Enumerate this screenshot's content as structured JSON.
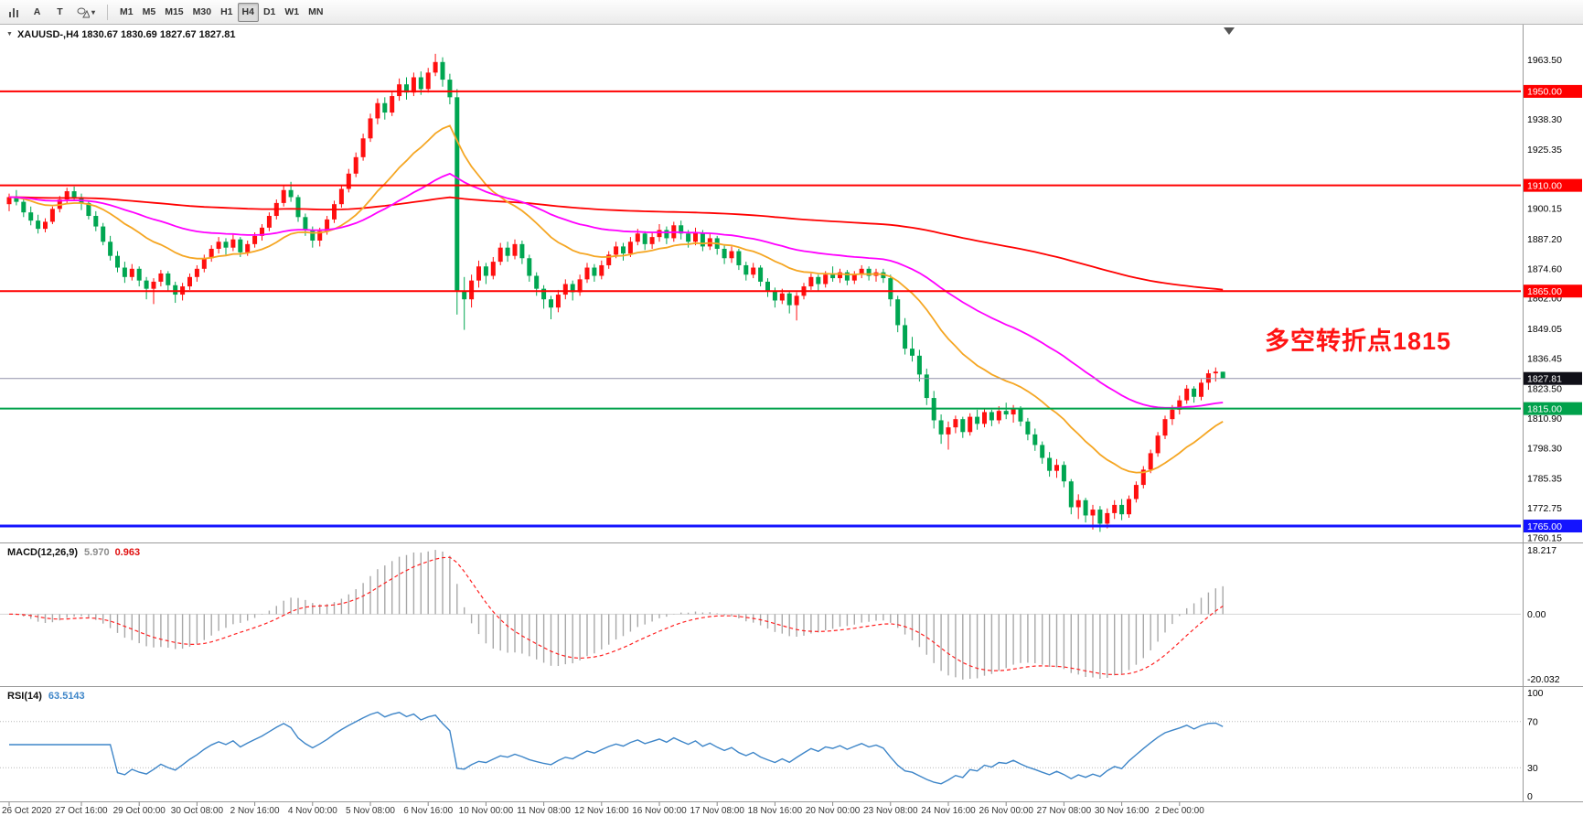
{
  "icons": {
    "caret": "▾",
    "title_arrow": "▼"
  },
  "toolbar": {
    "tools": {
      "text_label": "A",
      "text": "T"
    },
    "timeframes": [
      "M1",
      "M5",
      "M15",
      "M30",
      "H1",
      "H4",
      "D1",
      "W1",
      "MN"
    ],
    "active_timeframe": "H4"
  },
  "chart_data": [
    {
      "type": "candlestick",
      "title": "XAUUSD-,H4 1830.67 1830.69 1827.67 1827.81",
      "symbol": "XAUUSD-",
      "timeframe": "H4",
      "bull_color": "#ff0f0f",
      "bear_color": "#00a651",
      "price_axis": {
        "min": 1758,
        "max": 1978,
        "ticks": [
          "1963.50",
          "1938.30",
          "1925.35",
          "1900.15",
          "1887.20",
          "1874.60",
          "1862.00",
          "1849.05",
          "1836.45",
          "1823.50",
          "1810.90",
          "1798.30",
          "1785.35",
          "1772.75",
          "1760.15"
        ]
      },
      "x_axis": {
        "label_indices": [
          0,
          10,
          18,
          26,
          34,
          42,
          50,
          58,
          66,
          74,
          82,
          90,
          98,
          106,
          114,
          122,
          130,
          138,
          146,
          154,
          162
        ],
        "labels": [
          "26 Oct 2020",
          "27 Oct 16:00",
          "29 Oct 00:00",
          "30 Oct 08:00",
          "2 Nov 16:00",
          "4 Nov 00:00",
          "5 Nov 08:00",
          "6 Nov 16:00",
          "10 Nov 00:00",
          "11 Nov 08:00",
          "12 Nov 16:00",
          "16 Nov 00:00",
          "17 Nov 08:00",
          "18 Nov 16:00",
          "20 Nov 00:00",
          "23 Nov 08:00",
          "24 Nov 16:00",
          "26 Nov 00:00",
          "27 Nov 08:00",
          "30 Nov 16:00",
          "2 Dec 00:00"
        ]
      },
      "moving_averages": [
        {
          "period": 250,
          "color": "#ff0000"
        },
        {
          "period": 21,
          "color": "#f5a623"
        },
        {
          "period": 55,
          "color": "#ff00ff"
        }
      ],
      "hlines": [
        {
          "price": 1950,
          "label": "1950.00",
          "color": "#ff0000",
          "width": 2
        },
        {
          "price": 1910,
          "label": "1910.00",
          "color": "#ff0000",
          "width": 2
        },
        {
          "price": 1865,
          "label": "1865.00",
          "color": "#ff0000",
          "width": 2
        },
        {
          "price": 1815,
          "label": "1815.00",
          "color": "#00a14b",
          "width": 2
        },
        {
          "price": 1765,
          "label": "1765.00",
          "color": "#1414ff",
          "width": 3
        }
      ],
      "current_price": {
        "value": 1827.81,
        "label": "1827.81",
        "line_color": "#9090a8",
        "badge_bg": "#101018"
      },
      "annotation": {
        "text": "多空转折点1815",
        "color": "#ff1414"
      },
      "candles": [
        [
          1902,
          1906.5,
          1899,
          1905
        ],
        [
          1905,
          1908,
          1901.5,
          1903
        ],
        [
          1903,
          1904.5,
          1896.5,
          1898.5
        ],
        [
          1898.5,
          1901,
          1893,
          1895
        ],
        [
          1895,
          1897.5,
          1889.5,
          1891.5
        ],
        [
          1891.5,
          1896,
          1890,
          1894.5
        ],
        [
          1894.5,
          1901,
          1893.5,
          1900
        ],
        [
          1900,
          1905.5,
          1898.5,
          1904
        ],
        [
          1904,
          1909,
          1902,
          1907.5
        ],
        [
          1907.5,
          1909.5,
          1903.5,
          1905
        ],
        [
          1905,
          1906.5,
          1899.5,
          1902.5
        ],
        [
          1902.5,
          1903.5,
          1895.5,
          1897
        ],
        [
          1897,
          1899,
          1890.5,
          1892.5
        ],
        [
          1892.5,
          1894,
          1884.5,
          1886
        ],
        [
          1886,
          1888.5,
          1878,
          1880
        ],
        [
          1880,
          1882,
          1873,
          1875
        ],
        [
          1875,
          1877.5,
          1868.5,
          1871
        ],
        [
          1871,
          1876.5,
          1869.5,
          1874.5
        ],
        [
          1874.5,
          1875.5,
          1867,
          1869.5
        ],
        [
          1869.5,
          1871,
          1861.5,
          1866
        ],
        [
          1866,
          1870.5,
          1859.5,
          1869
        ],
        [
          1869,
          1874,
          1867,
          1872.5
        ],
        [
          1872.5,
          1873.5,
          1865,
          1867.5
        ],
        [
          1867.5,
          1869,
          1860,
          1863.5
        ],
        [
          1863.5,
          1868.5,
          1861,
          1867
        ],
        [
          1867,
          1872.5,
          1865.5,
          1871
        ],
        [
          1871,
          1876,
          1869,
          1874.5
        ],
        [
          1874.5,
          1880.5,
          1873,
          1879
        ],
        [
          1879,
          1884.5,
          1877.5,
          1883
        ],
        [
          1883,
          1888,
          1881,
          1886
        ],
        [
          1886,
          1887.5,
          1880.5,
          1883.5
        ],
        [
          1883.5,
          1889,
          1882,
          1887
        ],
        [
          1887,
          1888,
          1879.5,
          1881.5
        ],
        [
          1881.5,
          1886.5,
          1880,
          1885
        ],
        [
          1885,
          1890,
          1883.5,
          1888.5
        ],
        [
          1888.5,
          1893.5,
          1886.5,
          1892
        ],
        [
          1892,
          1898.5,
          1890.5,
          1897
        ],
        [
          1897,
          1904,
          1895.5,
          1902.5
        ],
        [
          1902.5,
          1910,
          1901,
          1908
        ],
        [
          1908,
          1911.5,
          1903,
          1905
        ],
        [
          1905,
          1906,
          1894.5,
          1896.5
        ],
        [
          1896.5,
          1898,
          1888.5,
          1891
        ],
        [
          1891,
          1892.5,
          1883.5,
          1886.5
        ],
        [
          1886.5,
          1892,
          1884,
          1890.5
        ],
        [
          1890.5,
          1897,
          1889,
          1895.5
        ],
        [
          1895.5,
          1903.5,
          1894,
          1902
        ],
        [
          1902,
          1910,
          1900.5,
          1908.5
        ],
        [
          1908.5,
          1917,
          1907,
          1915
        ],
        [
          1915,
          1924,
          1913.5,
          1922
        ],
        [
          1922,
          1932,
          1920.5,
          1930
        ],
        [
          1930,
          1940.5,
          1928.5,
          1938.5
        ],
        [
          1938.5,
          1947,
          1936,
          1945
        ],
        [
          1945,
          1947.5,
          1938,
          1941
        ],
        [
          1941,
          1950,
          1939.5,
          1948
        ],
        [
          1948,
          1955.5,
          1946,
          1953
        ],
        [
          1953,
          1956,
          1946.5,
          1949.5
        ],
        [
          1949.5,
          1958,
          1948,
          1956
        ],
        [
          1956,
          1958.5,
          1948.5,
          1951
        ],
        [
          1951,
          1960,
          1949.5,
          1958
        ],
        [
          1958,
          1966,
          1956.5,
          1962.5
        ],
        [
          1962.5,
          1964.5,
          1952,
          1955
        ],
        [
          1955,
          1957.5,
          1944.5,
          1947.5
        ],
        [
          1947.5,
          1951,
          1855,
          1865
        ],
        [
          1865,
          1871,
          1848.5,
          1861.5
        ],
        [
          1861.5,
          1872,
          1858,
          1869.5
        ],
        [
          1869.5,
          1878,
          1866.5,
          1875.5
        ],
        [
          1875.5,
          1877,
          1868,
          1871.5
        ],
        [
          1871.5,
          1879.5,
          1870,
          1877.5
        ],
        [
          1877.5,
          1885.5,
          1876,
          1883.5
        ],
        [
          1883.5,
          1886,
          1877.5,
          1880
        ],
        [
          1880,
          1887,
          1878.5,
          1885
        ],
        [
          1885,
          1886.5,
          1876.5,
          1879
        ],
        [
          1879,
          1880.5,
          1869,
          1871.5
        ],
        [
          1871.5,
          1873,
          1863,
          1866
        ],
        [
          1866,
          1867.5,
          1857.5,
          1861.5
        ],
        [
          1861.5,
          1863,
          1853,
          1858
        ],
        [
          1858,
          1865.5,
          1856,
          1863.5
        ],
        [
          1863.5,
          1870,
          1861.5,
          1868
        ],
        [
          1868,
          1869.5,
          1861,
          1864.5
        ],
        [
          1864.5,
          1872,
          1863,
          1870
        ],
        [
          1870,
          1877,
          1868.5,
          1875
        ],
        [
          1875,
          1876.5,
          1869,
          1871.5
        ],
        [
          1871.5,
          1878,
          1870,
          1876
        ],
        [
          1876,
          1882,
          1874.5,
          1880.5
        ],
        [
          1880.5,
          1886,
          1879,
          1884
        ],
        [
          1884,
          1885.5,
          1878,
          1881
        ],
        [
          1881,
          1888,
          1879.5,
          1886
        ],
        [
          1886,
          1891.5,
          1884.5,
          1889.5
        ],
        [
          1889.5,
          1890.5,
          1882.5,
          1885
        ],
        [
          1885,
          1890,
          1883,
          1888
        ],
        [
          1888,
          1893.5,
          1886,
          1891
        ],
        [
          1891,
          1892.5,
          1885,
          1887.5
        ],
        [
          1887.5,
          1894.5,
          1886,
          1893
        ],
        [
          1893,
          1895,
          1887,
          1889.5
        ],
        [
          1889.5,
          1891,
          1883.5,
          1886
        ],
        [
          1886,
          1892,
          1884.5,
          1890
        ],
        [
          1890,
          1891,
          1882,
          1884
        ],
        [
          1884,
          1889.5,
          1882.5,
          1887.5
        ],
        [
          1887.5,
          1888.5,
          1880.5,
          1883
        ],
        [
          1883,
          1884.5,
          1876.5,
          1879
        ],
        [
          1879,
          1884,
          1877,
          1882
        ],
        [
          1882,
          1883,
          1874,
          1876
        ],
        [
          1876,
          1877.5,
          1869.5,
          1872
        ],
        [
          1872,
          1877,
          1870.5,
          1875
        ],
        [
          1875,
          1876,
          1867,
          1869
        ],
        [
          1869,
          1870.5,
          1862.5,
          1865
        ],
        [
          1865,
          1866.5,
          1858,
          1861
        ],
        [
          1861,
          1866,
          1859.5,
          1864
        ],
        [
          1864,
          1865,
          1855.5,
          1859
        ],
        [
          1859,
          1864.5,
          1852.5,
          1863
        ],
        [
          1863,
          1868.5,
          1861.5,
          1867
        ],
        [
          1867,
          1872.5,
          1865.5,
          1871
        ],
        [
          1871,
          1872,
          1865,
          1868
        ],
        [
          1868,
          1873.5,
          1866.5,
          1872
        ],
        [
          1872,
          1875.5,
          1869,
          1870.5
        ],
        [
          1870.5,
          1874.5,
          1868.5,
          1873
        ],
        [
          1873,
          1874,
          1867.5,
          1869.5
        ],
        [
          1869.5,
          1873.5,
          1868,
          1872
        ],
        [
          1872,
          1876,
          1870.5,
          1874.5
        ],
        [
          1874.5,
          1875.5,
          1869.5,
          1871.5
        ],
        [
          1871.5,
          1874.5,
          1869,
          1873
        ],
        [
          1873,
          1874.5,
          1868.5,
          1870.5
        ],
        [
          1870.5,
          1872,
          1858.5,
          1861.5
        ],
        [
          1861.5,
          1863,
          1847.5,
          1850.5
        ],
        [
          1850.5,
          1853.5,
          1838,
          1840.5
        ],
        [
          1840.5,
          1845.5,
          1835,
          1837.5
        ],
        [
          1837.5,
          1840,
          1826.5,
          1829.5
        ],
        [
          1829.5,
          1832,
          1816.5,
          1819.5
        ],
        [
          1819.5,
          1822.5,
          1806.5,
          1810
        ],
        [
          1810,
          1812.5,
          1800,
          1804
        ],
        [
          1804,
          1809.5,
          1797.5,
          1807
        ],
        [
          1807,
          1812,
          1804.5,
          1810.5
        ],
        [
          1810.5,
          1811.5,
          1802.5,
          1805
        ],
        [
          1805,
          1813,
          1803.5,
          1811.5
        ],
        [
          1811.5,
          1814.5,
          1806,
          1808.5
        ],
        [
          1808.5,
          1815,
          1807,
          1813.5
        ],
        [
          1813.5,
          1814.5,
          1807.5,
          1810
        ],
        [
          1810,
          1816,
          1808.5,
          1814
        ],
        [
          1814,
          1817.5,
          1810.5,
          1812.5
        ],
        [
          1812.5,
          1816.5,
          1809,
          1815
        ],
        [
          1815,
          1816,
          1807.5,
          1809.5
        ],
        [
          1809.5,
          1811,
          1801.5,
          1804
        ],
        [
          1804,
          1806.5,
          1797,
          1799.5
        ],
        [
          1799.5,
          1801,
          1791.5,
          1794
        ],
        [
          1794,
          1796.5,
          1786,
          1788.5
        ],
        [
          1788.5,
          1793.5,
          1785.5,
          1791
        ],
        [
          1791,
          1792.5,
          1781.5,
          1784
        ],
        [
          1784,
          1785,
          1770,
          1773
        ],
        [
          1773,
          1778.5,
          1768,
          1776
        ],
        [
          1776,
          1777,
          1766.5,
          1769.5
        ],
        [
          1769.5,
          1774,
          1763.5,
          1772
        ],
        [
          1772,
          1773.5,
          1762.5,
          1766
        ],
        [
          1766,
          1772.5,
          1764,
          1770.5
        ],
        [
          1770.5,
          1776,
          1768,
          1774
        ],
        [
          1774,
          1776.5,
          1767.5,
          1770
        ],
        [
          1770,
          1778,
          1768.5,
          1776.5
        ],
        [
          1776.5,
          1784,
          1775,
          1782.5
        ],
        [
          1782.5,
          1790.5,
          1781,
          1789
        ],
        [
          1789,
          1797.5,
          1787.5,
          1796
        ],
        [
          1796,
          1805,
          1794.5,
          1803.5
        ],
        [
          1803.5,
          1812,
          1802,
          1810.5
        ],
        [
          1810.5,
          1816.5,
          1808,
          1814.5
        ],
        [
          1814.5,
          1820.5,
          1812.5,
          1818.5
        ],
        [
          1818.5,
          1825,
          1817,
          1823.5
        ],
        [
          1823.5,
          1824.5,
          1817.5,
          1820
        ],
        [
          1820,
          1827.5,
          1818.5,
          1826
        ],
        [
          1826,
          1831.5,
          1823,
          1830
        ],
        [
          1830,
          1832.5,
          1826.5,
          1830.7
        ],
        [
          1830.67,
          1830.69,
          1827.67,
          1827.81
        ]
      ]
    },
    {
      "type": "macd",
      "label": "MACD(12,26,9)",
      "value_main": "5.970",
      "value_signal": "0.963",
      "params": [
        12,
        26,
        9
      ],
      "axis_labels": [
        "18.217",
        "0.00",
        "-20.032"
      ],
      "histogram_color": "#a8a8a8",
      "signal_color": "#ff2020"
    },
    {
      "type": "rsi",
      "label": "RSI(14)",
      "value": "63.5143",
      "period": 14,
      "levels": [
        70,
        30
      ],
      "axis_labels": [
        "100",
        "70",
        "30",
        "0"
      ],
      "line_color": "#3d85c8"
    }
  ]
}
